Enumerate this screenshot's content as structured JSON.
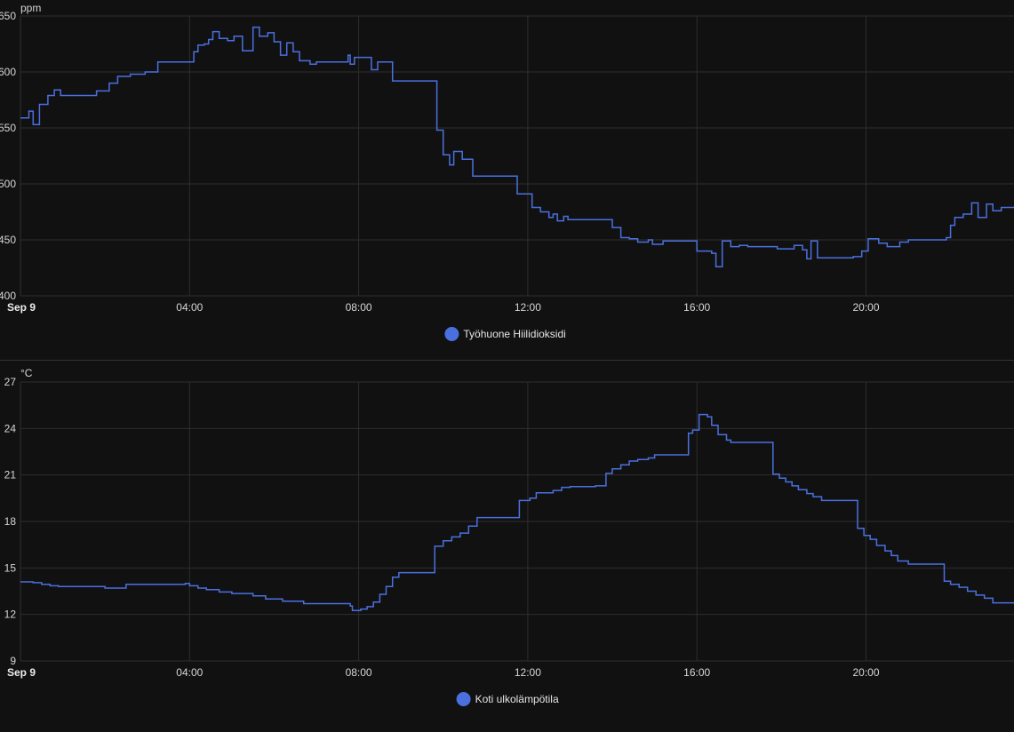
{
  "colors": {
    "background": "#111111",
    "series": "#4a70e0",
    "grid": "#2e2e2e"
  },
  "chart_data": [
    {
      "type": "line",
      "step": true,
      "unit": "ppm",
      "ylim": [
        400,
        650
      ],
      "yticks": [
        400,
        450,
        500,
        550,
        600,
        650
      ],
      "ytick_labels": [
        "400",
        "450",
        "500",
        "550",
        "600",
        "650"
      ],
      "xlim": [
        0,
        23.5
      ],
      "xticks": [
        0,
        4,
        8,
        12,
        16,
        20
      ],
      "xtick_labels": [
        "Sep 9",
        "04:00",
        "08:00",
        "12:00",
        "16:00",
        "20:00"
      ],
      "grid": true,
      "legend": "bottom-center",
      "series": [
        {
          "name": "Työhuone Hiilidioksidi",
          "color": "#4a70e0",
          "points": [
            [
              0,
              559
            ],
            [
              0.2,
              565
            ],
            [
              0.3,
              553
            ],
            [
              0.45,
              571
            ],
            [
              0.65,
              579
            ],
            [
              0.8,
              584
            ],
            [
              0.95,
              579
            ],
            [
              1.8,
              583
            ],
            [
              2.1,
              590
            ],
            [
              2.3,
              596
            ],
            [
              2.6,
              598
            ],
            [
              2.95,
              600
            ],
            [
              3.25,
              609
            ],
            [
              4.0,
              609
            ],
            [
              4.1,
              618
            ],
            [
              4.2,
              624
            ],
            [
              4.35,
              625
            ],
            [
              4.45,
              629
            ],
            [
              4.55,
              636
            ],
            [
              4.7,
              630
            ],
            [
              4.9,
              628
            ],
            [
              5.05,
              632
            ],
            [
              5.25,
              619
            ],
            [
              5.5,
              640
            ],
            [
              5.65,
              632
            ],
            [
              5.85,
              635
            ],
            [
              6.0,
              627
            ],
            [
              6.15,
              615
            ],
            [
              6.3,
              626
            ],
            [
              6.45,
              618
            ],
            [
              6.6,
              610
            ],
            [
              6.85,
              607
            ],
            [
              7.0,
              609
            ],
            [
              7.75,
              615
            ],
            [
              7.8,
              607
            ],
            [
              7.9,
              613
            ],
            [
              8.3,
              602
            ],
            [
              8.45,
              609
            ],
            [
              8.8,
              592
            ],
            [
              9.85,
              548
            ],
            [
              10.0,
              526
            ],
            [
              10.15,
              517
            ],
            [
              10.25,
              529
            ],
            [
              10.45,
              522
            ],
            [
              10.7,
              507
            ],
            [
              11.75,
              491
            ],
            [
              12.1,
              479
            ],
            [
              12.3,
              475
            ],
            [
              12.5,
              470
            ],
            [
              12.6,
              473
            ],
            [
              12.7,
              467
            ],
            [
              12.85,
              471
            ],
            [
              12.95,
              468
            ],
            [
              14.0,
              461
            ],
            [
              14.2,
              452
            ],
            [
              14.4,
              451
            ],
            [
              14.6,
              448
            ],
            [
              14.85,
              450
            ],
            [
              14.95,
              446
            ],
            [
              15.2,
              449
            ],
            [
              16.0,
              440
            ],
            [
              16.35,
              438
            ],
            [
              16.45,
              426
            ],
            [
              16.6,
              449
            ],
            [
              16.8,
              444
            ],
            [
              17.0,
              445
            ],
            [
              17.2,
              444
            ],
            [
              17.9,
              442
            ],
            [
              18.3,
              445
            ],
            [
              18.5,
              441
            ],
            [
              18.6,
              433
            ],
            [
              18.7,
              449
            ],
            [
              18.85,
              434
            ],
            [
              19.7,
              435
            ],
            [
              19.9,
              440
            ],
            [
              20.05,
              451
            ],
            [
              20.3,
              447
            ],
            [
              20.5,
              444
            ],
            [
              20.8,
              448
            ],
            [
              21.0,
              450
            ],
            [
              21.9,
              452
            ],
            [
              22.0,
              463
            ],
            [
              22.1,
              470
            ],
            [
              22.3,
              473
            ],
            [
              22.5,
              483
            ],
            [
              22.65,
              470
            ],
            [
              22.85,
              482
            ],
            [
              23.0,
              476
            ],
            [
              23.2,
              479
            ],
            [
              23.5,
              479
            ]
          ]
        }
      ]
    },
    {
      "type": "line",
      "step": true,
      "unit": "°C",
      "ylim": [
        9,
        27
      ],
      "yticks": [
        9,
        12,
        15,
        18,
        21,
        24,
        27
      ],
      "ytick_labels": [
        "9",
        "12",
        "15",
        "18",
        "21",
        "24",
        "27"
      ],
      "xlim": [
        0,
        23.5
      ],
      "xticks": [
        0,
        4,
        8,
        12,
        16,
        20
      ],
      "xtick_labels": [
        "Sep 9",
        "04:00",
        "08:00",
        "12:00",
        "16:00",
        "20:00"
      ],
      "grid": true,
      "legend": "bottom-center",
      "series": [
        {
          "name": "Koti ulkolämpötila",
          "color": "#4a70e0",
          "points": [
            [
              0,
              14.1
            ],
            [
              0.3,
              14.05
            ],
            [
              0.5,
              13.95
            ],
            [
              0.7,
              13.85
            ],
            [
              0.9,
              13.8
            ],
            [
              2.0,
              13.7
            ],
            [
              2.5,
              13.95
            ],
            [
              3.9,
              14.0
            ],
            [
              4.0,
              13.85
            ],
            [
              4.2,
              13.7
            ],
            [
              4.4,
              13.6
            ],
            [
              4.7,
              13.45
            ],
            [
              5.0,
              13.35
            ],
            [
              5.5,
              13.2
            ],
            [
              5.8,
              13.0
            ],
            [
              6.2,
              12.85
            ],
            [
              6.7,
              12.7
            ],
            [
              7.8,
              12.55
            ],
            [
              7.85,
              12.25
            ],
            [
              8.05,
              12.35
            ],
            [
              8.2,
              12.5
            ],
            [
              8.35,
              12.8
            ],
            [
              8.5,
              13.3
            ],
            [
              8.65,
              13.8
            ],
            [
              8.8,
              14.4
            ],
            [
              8.95,
              14.7
            ],
            [
              9.8,
              16.4
            ],
            [
              10.0,
              16.75
            ],
            [
              10.2,
              17.0
            ],
            [
              10.4,
              17.25
            ],
            [
              10.6,
              17.7
            ],
            [
              10.8,
              18.25
            ],
            [
              11.8,
              19.35
            ],
            [
              12.05,
              19.5
            ],
            [
              12.2,
              19.85
            ],
            [
              12.6,
              20.0
            ],
            [
              12.8,
              20.2
            ],
            [
              13.0,
              20.25
            ],
            [
              13.6,
              20.3
            ],
            [
              13.85,
              21.1
            ],
            [
              14.0,
              21.4
            ],
            [
              14.2,
              21.65
            ],
            [
              14.4,
              21.9
            ],
            [
              14.6,
              22.0
            ],
            [
              14.85,
              22.1
            ],
            [
              15.0,
              22.3
            ],
            [
              15.8,
              23.7
            ],
            [
              15.9,
              23.9
            ],
            [
              16.05,
              24.9
            ],
            [
              16.25,
              24.75
            ],
            [
              16.35,
              24.2
            ],
            [
              16.5,
              23.6
            ],
            [
              16.7,
              23.25
            ],
            [
              16.8,
              23.1
            ],
            [
              17.8,
              21.05
            ],
            [
              17.95,
              20.8
            ],
            [
              18.1,
              20.55
            ],
            [
              18.25,
              20.3
            ],
            [
              18.4,
              20.05
            ],
            [
              18.6,
              19.8
            ],
            [
              18.75,
              19.6
            ],
            [
              18.95,
              19.35
            ],
            [
              19.8,
              17.55
            ],
            [
              19.95,
              17.1
            ],
            [
              20.1,
              16.85
            ],
            [
              20.25,
              16.45
            ],
            [
              20.45,
              16.1
            ],
            [
              20.6,
              15.8
            ],
            [
              20.75,
              15.45
            ],
            [
              21.0,
              15.25
            ],
            [
              21.85,
              14.15
            ],
            [
              22.0,
              13.95
            ],
            [
              22.2,
              13.75
            ],
            [
              22.4,
              13.5
            ],
            [
              22.6,
              13.25
            ],
            [
              22.8,
              13.05
            ],
            [
              23.0,
              12.75
            ],
            [
              23.5,
              12.7
            ]
          ]
        }
      ]
    }
  ]
}
